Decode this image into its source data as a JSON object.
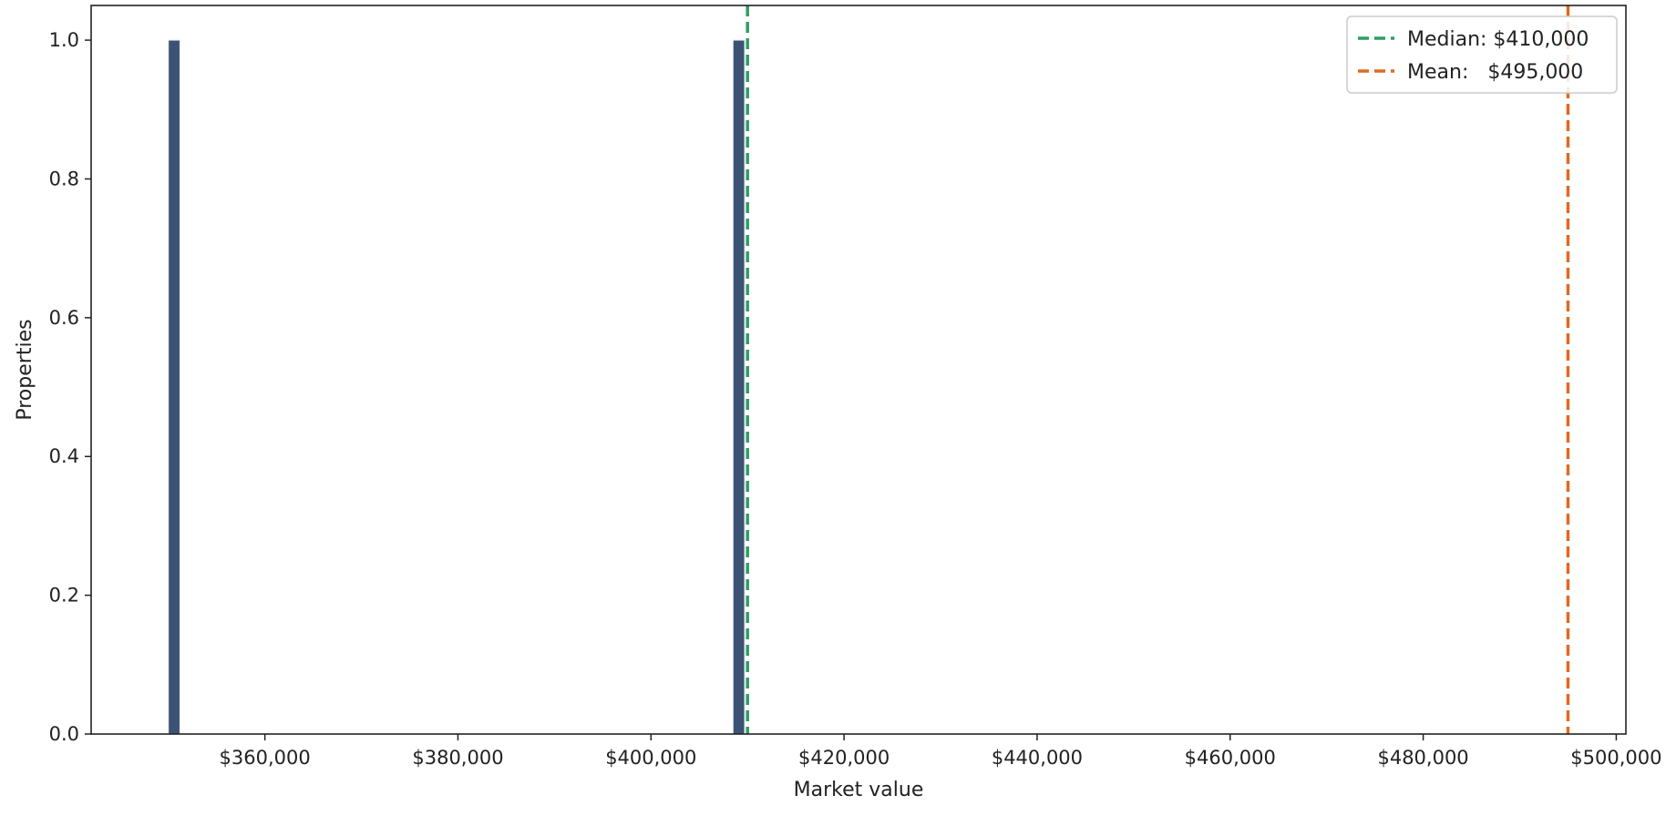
{
  "chart_data": {
    "type": "bar",
    "title": "",
    "xlabel": "Market value",
    "ylabel": "Properties",
    "xlim": [
      342000,
      501000
    ],
    "ylim": [
      0,
      1.05
    ],
    "x_ticks": [
      360000,
      380000,
      400000,
      420000,
      440000,
      460000,
      480000,
      500000
    ],
    "x_tick_labels": [
      "$360,000",
      "$380,000",
      "$400,000",
      "$420,000",
      "$440,000",
      "$460,000",
      "$480,000",
      "$500,000"
    ],
    "y_ticks": [
      0.0,
      0.2,
      0.4,
      0.6,
      0.8,
      1.0
    ],
    "y_tick_labels": [
      "0.0",
      "0.2",
      "0.4",
      "0.6",
      "0.8",
      "1.0"
    ],
    "bins": [
      {
        "x0": 350000,
        "x1": 351200,
        "value": 1
      },
      {
        "x0": 408500,
        "x1": 409700,
        "value": 1
      }
    ],
    "bar_color": "#3b5275",
    "reference_lines": [
      {
        "label": "Median: $410,000",
        "value": 410000,
        "color": "#2e9e62",
        "style": "dashed"
      },
      {
        "label": "Mean:   $495,000",
        "value": 495000,
        "color": "#e06a1f",
        "style": "dashed"
      }
    ],
    "legend_position": "top-right",
    "grid": false
  }
}
